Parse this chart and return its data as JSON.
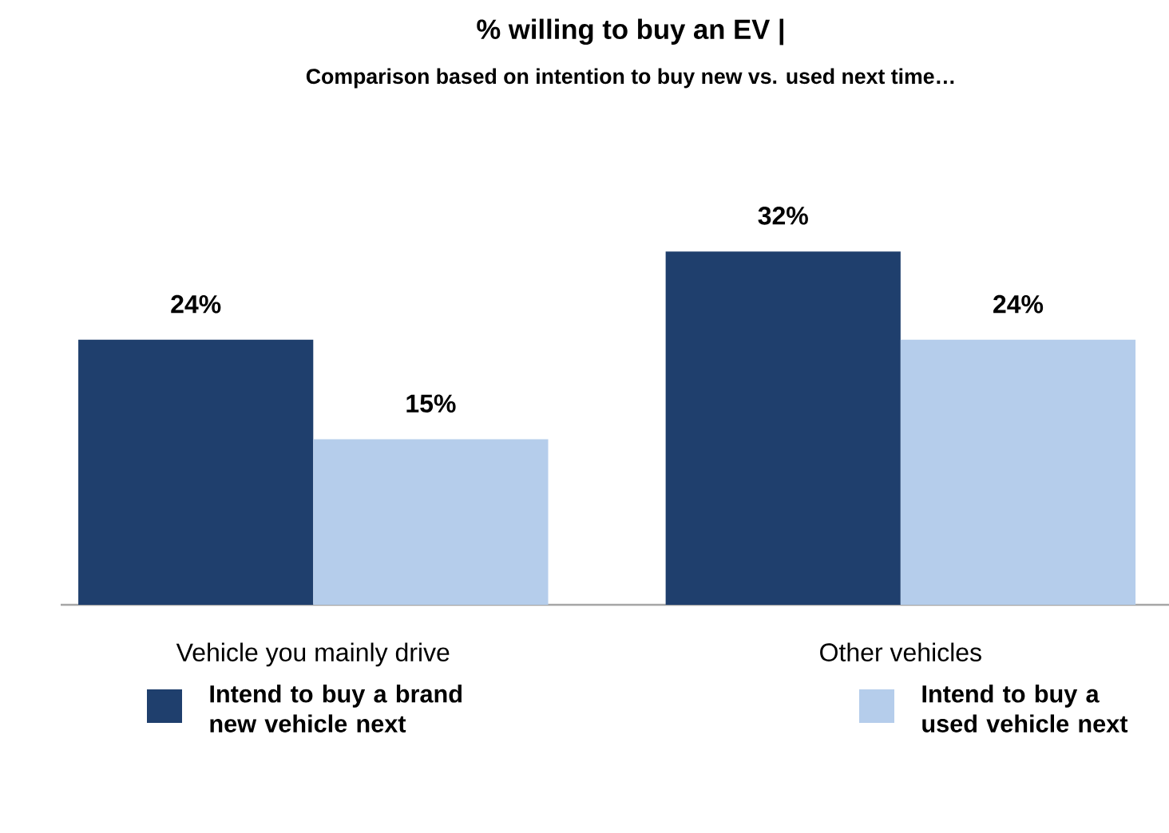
{
  "chart_data": {
    "type": "bar",
    "title": "% willing to buy an EV |",
    "subtitle": "Comparison based on intention to buy new vs. used next time…",
    "categories": [
      "Vehicle you mainly drive",
      "Other vehicles"
    ],
    "series": [
      {
        "name": "Intend to buy a brand new vehicle next",
        "color": "#1f3f6d",
        "values": [
          24,
          32
        ],
        "value_labels": [
          "24%",
          "32%"
        ]
      },
      {
        "name": "Intend to buy a used vehicle next",
        "color": "#b5cdeb",
        "values": [
          15,
          24
        ],
        "value_labels": [
          "15%",
          "24%"
        ]
      }
    ],
    "legend": "bottom"
  }
}
